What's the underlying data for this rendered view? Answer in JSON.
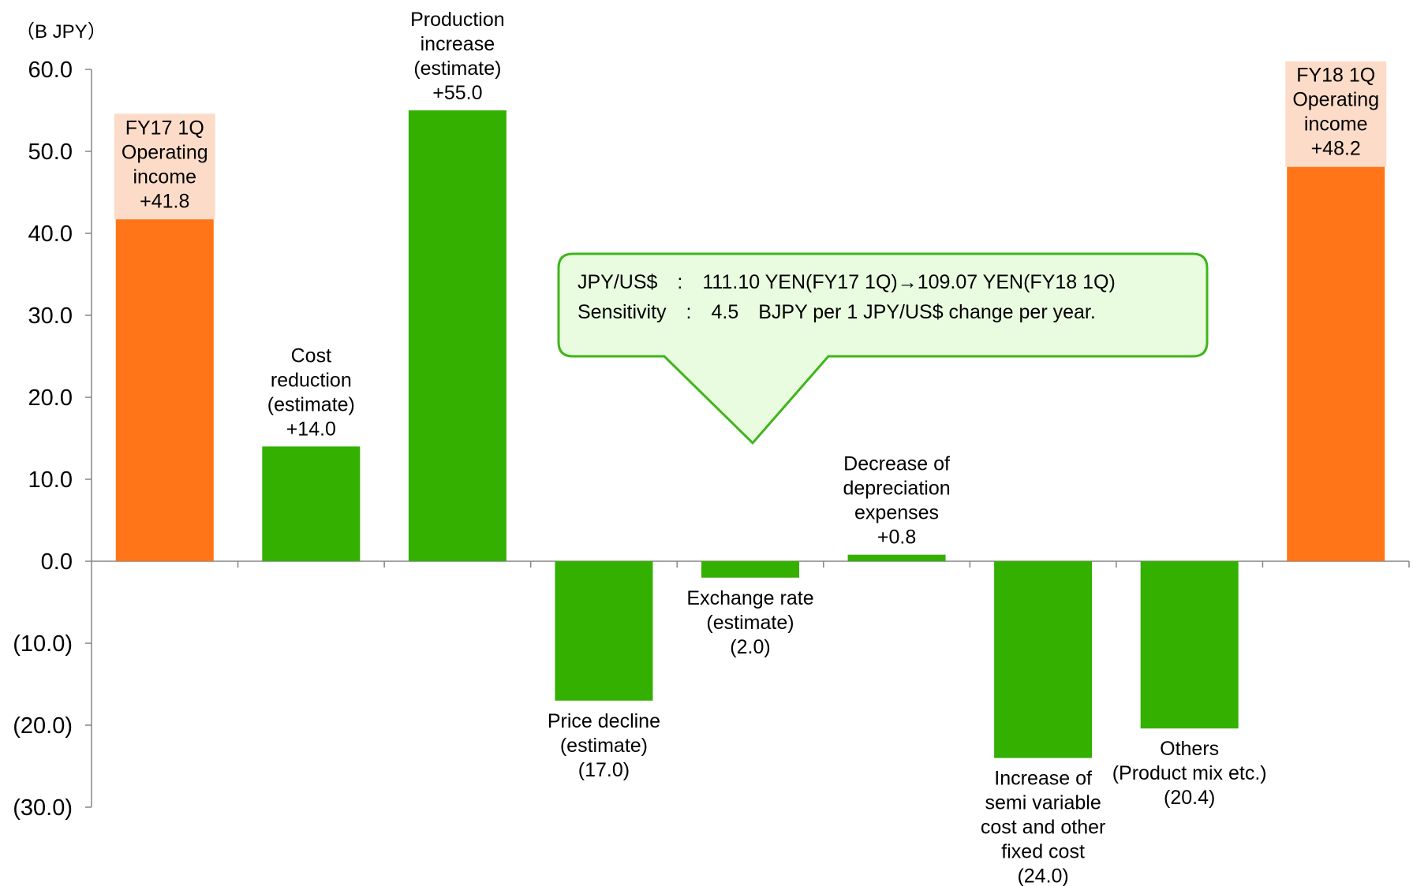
{
  "chart_data": {
    "type": "bar",
    "unit": "（B JPY）",
    "ylim": [
      -30,
      60
    ],
    "yticks": [
      60,
      50,
      40,
      30,
      20,
      10,
      0,
      -10,
      -20,
      -30
    ],
    "ytick_labels": [
      "60.0",
      "50.0",
      "40.0",
      "30.0",
      "20.0",
      "10.0",
      "0.0",
      "(10.0)",
      "(20.0)",
      "(30.0)"
    ],
    "bars": [
      {
        "lines": [
          "FY17 1Q",
          "Operating",
          "income",
          "+41.8"
        ],
        "value": 41.8,
        "kind": "total"
      },
      {
        "lines": [
          "Cost",
          "reduction",
          "(estimate)",
          "+14.0"
        ],
        "value": 14.0,
        "kind": "change"
      },
      {
        "lines": [
          "Production",
          "increase",
          "(estimate)",
          "+55.0"
        ],
        "value": 55.0,
        "kind": "change"
      },
      {
        "lines": [
          "Price decline",
          "(estimate)",
          "(17.0)"
        ],
        "value": -17.0,
        "kind": "change"
      },
      {
        "lines": [
          "Exchange rate",
          "(estimate)",
          "(2.0)"
        ],
        "value": -2.0,
        "kind": "change"
      },
      {
        "lines": [
          "Decrease of",
          "depreciation",
          "expenses",
          "+0.8"
        ],
        "value": 0.8,
        "kind": "change"
      },
      {
        "lines": [
          "Increase of",
          "semi variable",
          "cost and other",
          "fixed cost",
          "(24.0)"
        ],
        "value": -24.0,
        "kind": "change"
      },
      {
        "lines": [
          "Others",
          "(Product mix etc.)",
          "(20.4)"
        ],
        "value": -20.4,
        "kind": "change"
      },
      {
        "lines": [
          "FY18 1Q",
          "Operating",
          "income",
          "+48.2"
        ],
        "value": 48.2,
        "kind": "total"
      }
    ],
    "colors": {
      "total": "#FF7518",
      "change": "#33B000",
      "total_label_bg": "#FCDCC8",
      "callout_bg": "#E9FCE0",
      "callout_border": "#3FB51B"
    },
    "callout": {
      "lines": [
        "JPY/US$　:　111.10 YEN(FY17 1Q)→109.07 YEN(FY18 1Q)",
        "Sensitivity　:　4.5　BJPY per 1 JPY/US$ change per year."
      ]
    }
  }
}
